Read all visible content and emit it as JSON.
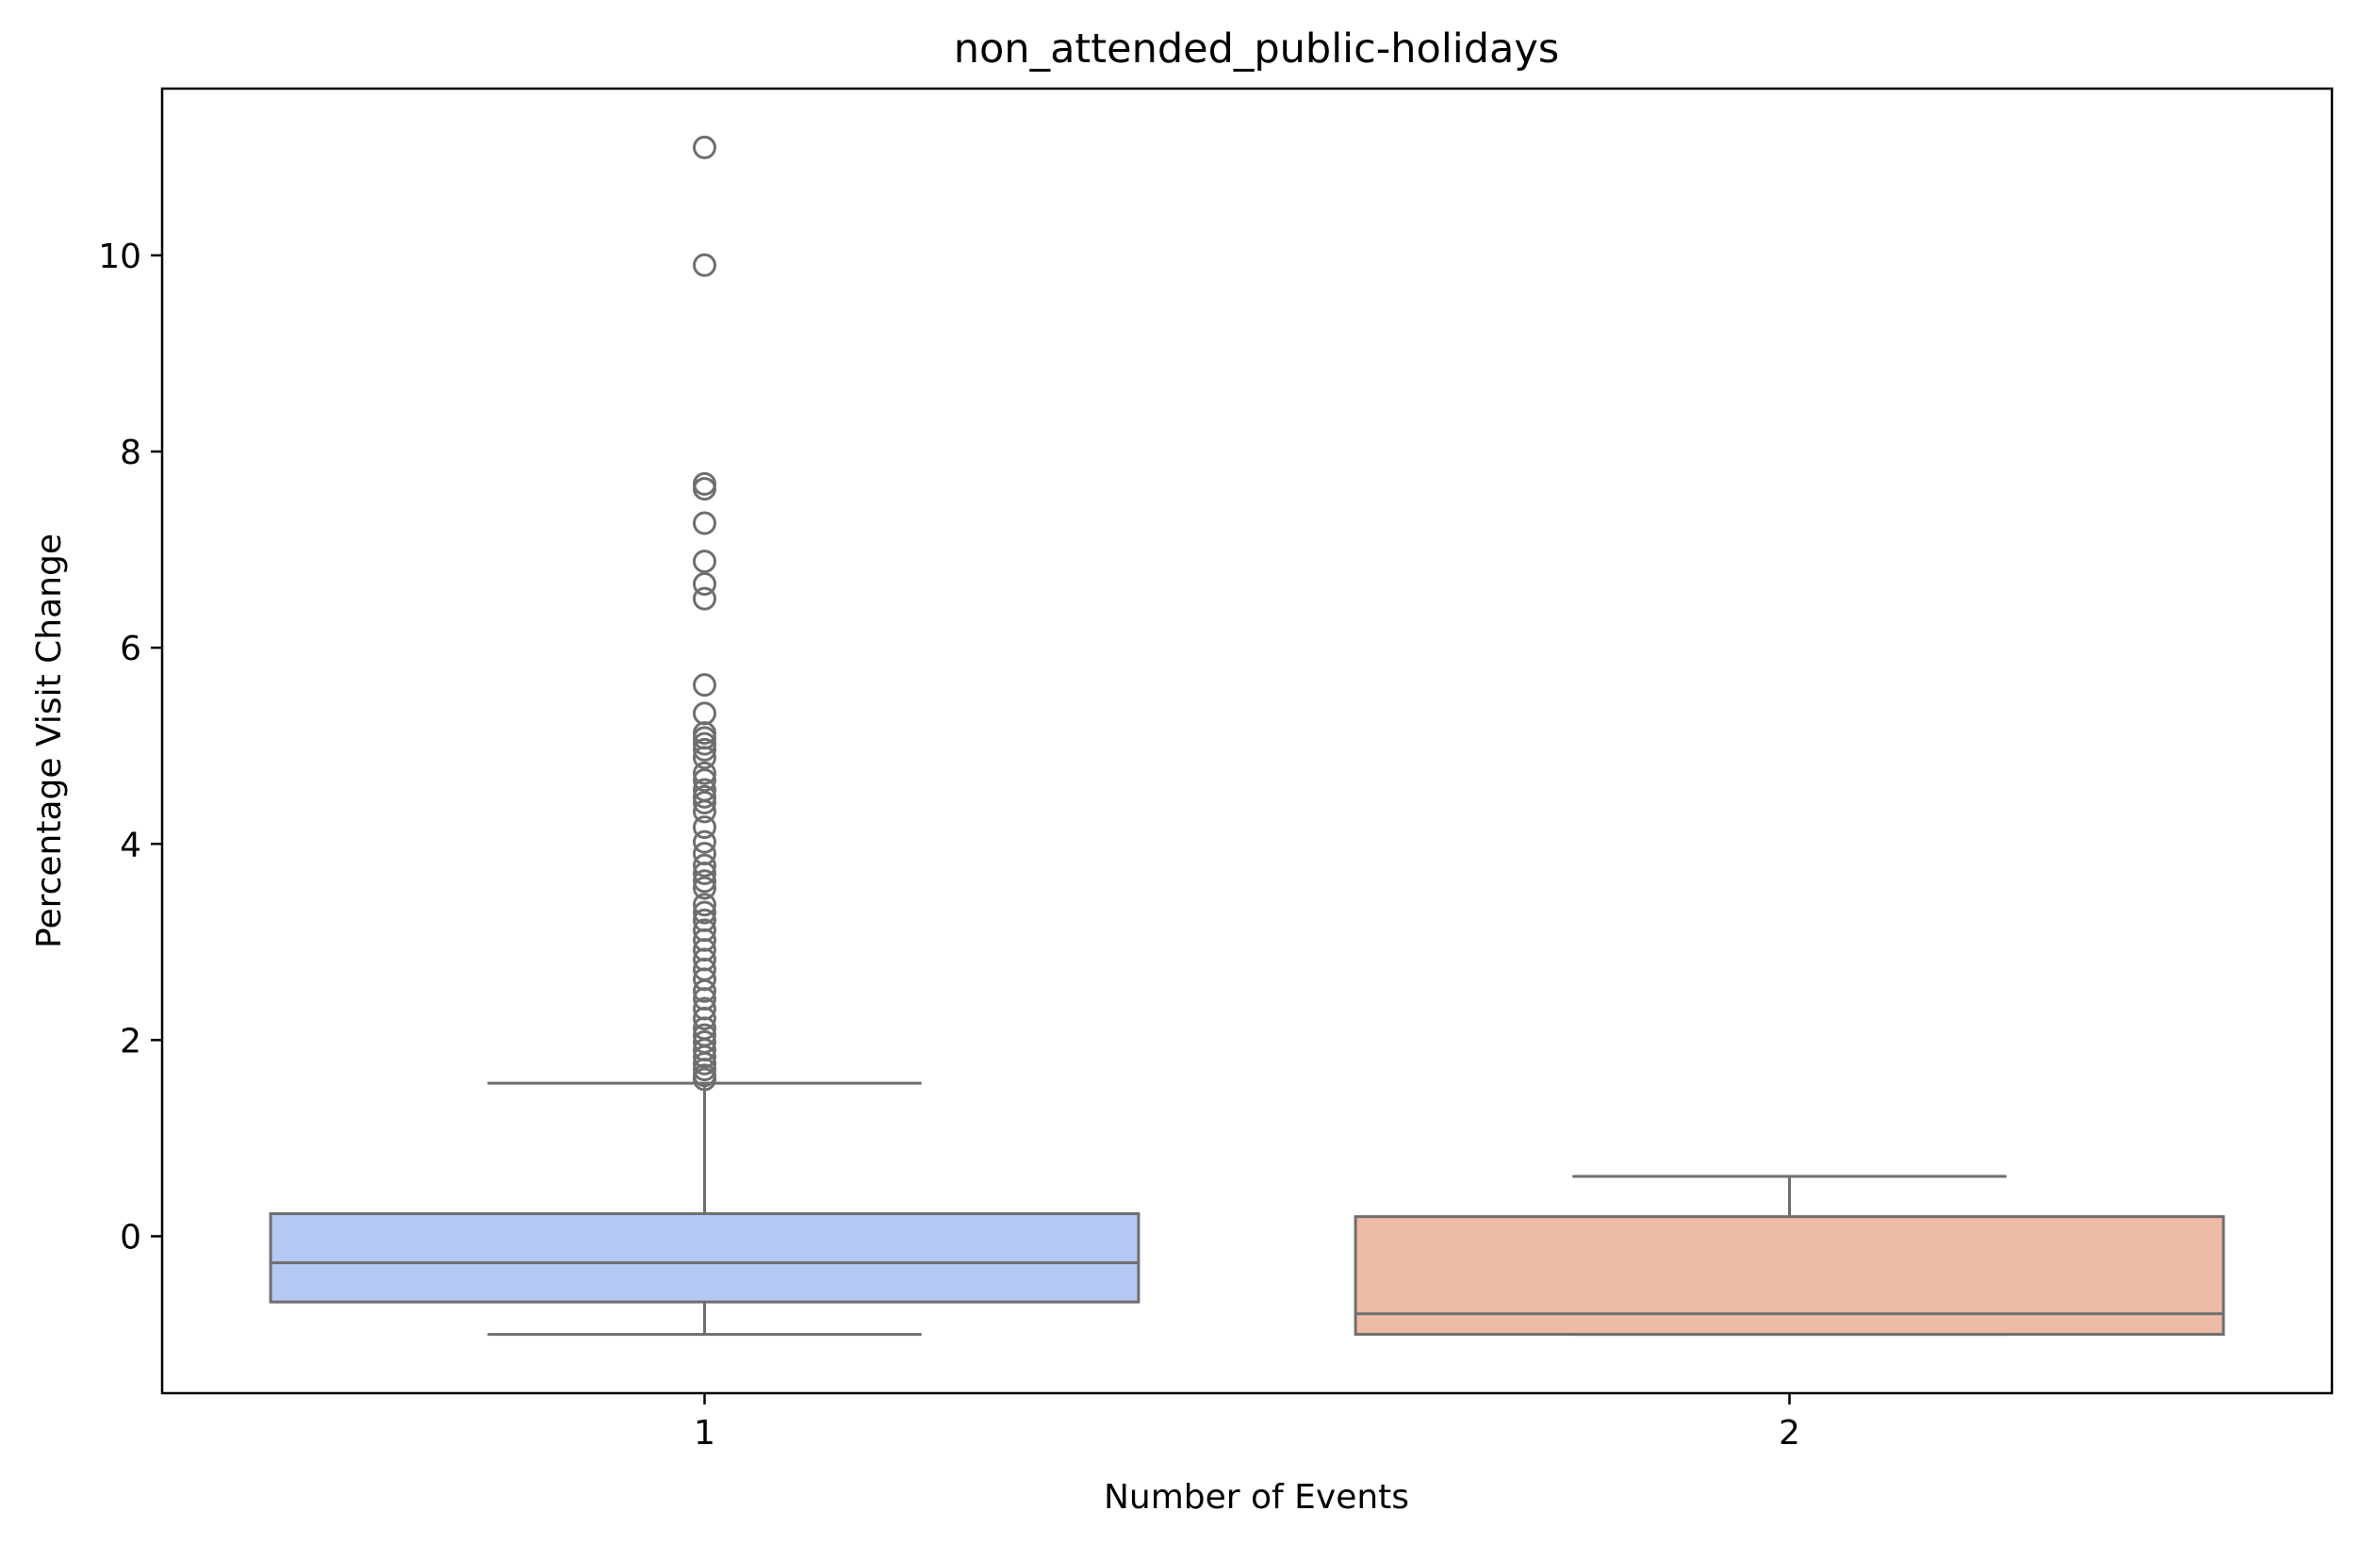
{
  "chart_data": {
    "type": "box",
    "title": "non_attended_public-holidays",
    "xlabel": "Number of Events",
    "ylabel": "Percentage Visit Change",
    "categories": [
      "1",
      "2"
    ],
    "ylim": [
      -1.6,
      11.7
    ],
    "yticks": [
      0,
      2,
      4,
      6,
      8,
      10
    ],
    "grid": false,
    "boxes": [
      {
        "category": "1",
        "color": "#b3c9f4",
        "q1": -0.67,
        "median": -0.27,
        "q3": 0.23,
        "whisker_low": -1.0,
        "whisker_high": 1.56,
        "outliers": [
          11.1,
          9.9,
          7.67,
          7.62,
          7.27,
          6.88,
          6.65,
          6.5,
          5.62,
          5.33,
          5.13,
          5.08,
          5.02,
          4.96,
          4.88,
          4.72,
          4.65,
          4.55,
          4.48,
          4.42,
          4.33,
          4.17,
          4.02,
          3.9,
          3.78,
          3.7,
          3.62,
          3.55,
          3.38,
          3.3,
          3.22,
          3.12,
          3.02,
          2.92,
          2.82,
          2.72,
          2.62,
          2.5,
          2.42,
          2.32,
          2.22,
          2.12,
          2.05,
          1.98,
          1.9,
          1.83,
          1.76,
          1.7,
          1.64,
          1.6
        ]
      },
      {
        "category": "2",
        "color": "#eebba6",
        "q1": -1.0,
        "median": -0.79,
        "q3": 0.2,
        "whisker_low": -1.0,
        "whisker_high": 0.61,
        "outliers": []
      }
    ]
  }
}
